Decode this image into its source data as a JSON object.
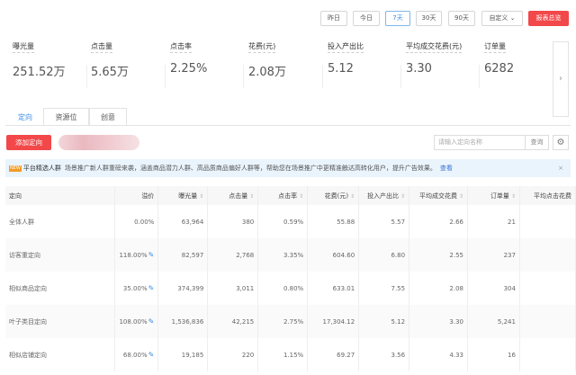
{
  "date_buttons": [
    "昨日",
    "今日",
    "7天",
    "30天",
    "90天",
    "自定义"
  ],
  "active_date": "7天",
  "report_button": "报表总览",
  "metrics": [
    {
      "label": "曝光量",
      "value": "251.52万"
    },
    {
      "label": "点击量",
      "value": "5.65万"
    },
    {
      "label": "点击率",
      "value": "2.25%"
    },
    {
      "label": "花费(元)",
      "value": "2.08万"
    },
    {
      "label": "投入产出比",
      "value": "5.12"
    },
    {
      "label": "平均成交花费(元)",
      "value": "3.30"
    },
    {
      "label": "订单量",
      "value": "6282"
    }
  ],
  "tabs": [
    "定向",
    "资源位",
    "创意"
  ],
  "add_button": "添加定向",
  "search": {
    "placeholder": "请输入定向名称",
    "button": "查询"
  },
  "notice": {
    "tag": "NEW",
    "title": "平台精选人群",
    "text": "场景推广新人群重磅来袭，涵盖商品潜力人群、高品质商品偏好人群等，帮助您在场景推广中更精准触达高转化用户，提升广告效果。",
    "link": "查看"
  },
  "table": {
    "columns": [
      "定向",
      "溢价",
      "曝光量",
      "点击量",
      "点击率",
      "花费(元)",
      "投入产出比",
      "平均成交花费",
      "订单量",
      "平均点击花费"
    ],
    "rows": [
      [
        "全体人群",
        "0.00%",
        "63,964",
        "380",
        "0.59%",
        "55.88",
        "5.57",
        "2.66",
        "21",
        ""
      ],
      [
        "访客重定向",
        "118.00%",
        "82,597",
        "2,768",
        "3.35%",
        "604.60",
        "6.80",
        "2.55",
        "237",
        ""
      ],
      [
        "相似商品定向",
        "35.00%",
        "374,399",
        "3,011",
        "0.80%",
        "633.01",
        "7.55",
        "2.08",
        "304",
        ""
      ],
      [
        "叶子类目定向",
        "108.00%",
        "1,536,836",
        "42,215",
        "2.75%",
        "17,304.12",
        "5.12",
        "3.30",
        "5,241",
        ""
      ],
      [
        "相似店铺定向",
        "68.00%",
        "19,185",
        "220",
        "1.15%",
        "69.27",
        "3.56",
        "4.33",
        "16",
        ""
      ]
    ]
  },
  "colors": {
    "accent": "#3a8ee6",
    "brand_red": "#f2484a"
  }
}
